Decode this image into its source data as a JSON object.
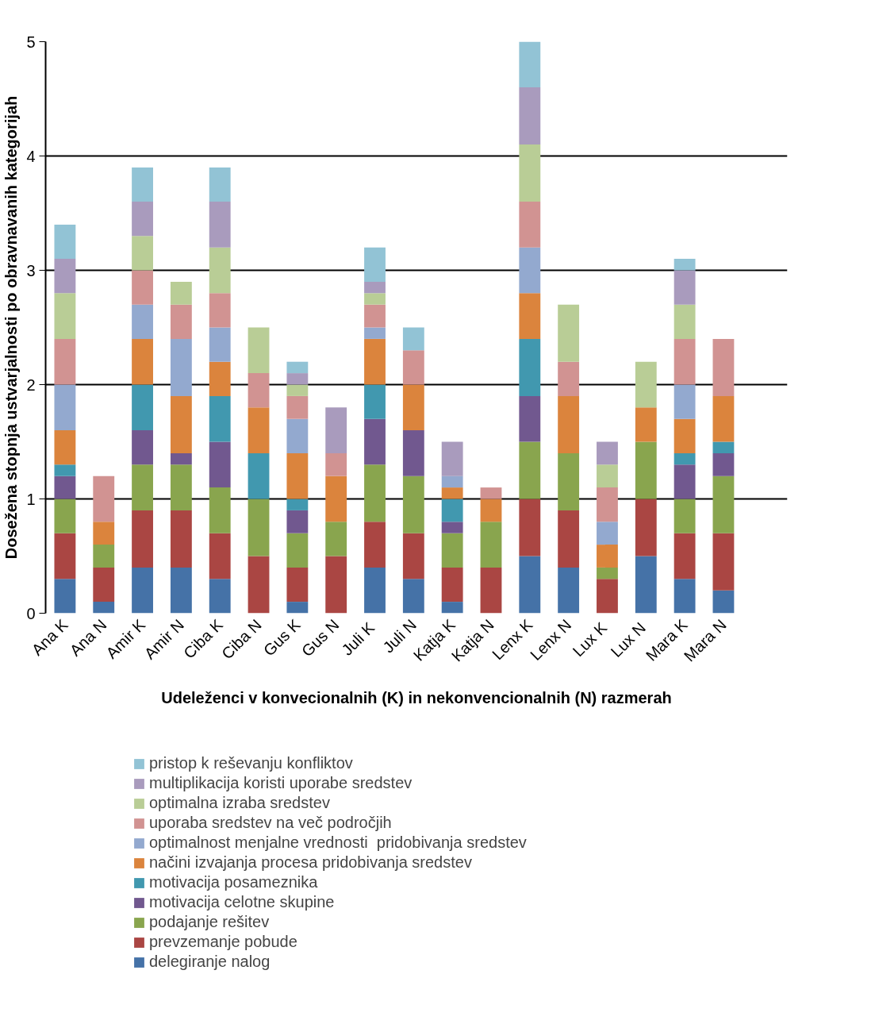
{
  "chart_data": {
    "type": "bar",
    "stacked": true,
    "xlabel": "Udeleženci v konvecionalnih (K) in nekonvencionalnih (N) razmerah",
    "ylabel": "Dosežena stopnja ustvarjalnosti po obravnavanih kategorijah",
    "categories": [
      "Ana K",
      "Ana N",
      "Amir K",
      "Amir N",
      "Ciba K",
      "Ciba N",
      "Gus K",
      "Gus N",
      "Juli  K",
      "Juli N",
      "Katja K",
      "Katja N",
      "Lenx K",
      "Lenx N",
      "Lux  K",
      "Lux  N",
      "Mara K",
      "Mara N"
    ],
    "ylim": [
      0,
      5
    ],
    "yticks": [
      0,
      1,
      2,
      3,
      4,
      5
    ],
    "grid": "y",
    "legend": "bottom",
    "series": [
      {
        "name": "delegiranje nalog",
        "color": "#4572a7",
        "values": [
          0.3,
          0.1,
          0.4,
          0.4,
          0.3,
          0,
          0.1,
          0,
          0.4,
          0.3,
          0.1,
          0,
          0.5,
          0.4,
          0,
          0.5,
          0.3,
          0.2
        ]
      },
      {
        "name": "prevzemanje pobude",
        "color": "#aa4643",
        "values": [
          0.4,
          0.3,
          0.5,
          0.5,
          0.4,
          0.5,
          0.3,
          0.5,
          0.4,
          0.4,
          0.3,
          0.4,
          0.5,
          0.5,
          0.3,
          0.5,
          0.4,
          0.5
        ]
      },
      {
        "name": "podajanje rešitev",
        "color": "#89a54e",
        "values": [
          0.3,
          0.2,
          0.4,
          0.4,
          0.4,
          0.5,
          0.3,
          0.3,
          0.5,
          0.5,
          0.3,
          0.4,
          0.5,
          0.5,
          0.1,
          0.5,
          0.3,
          0.5
        ]
      },
      {
        "name": "motivacija celotne skupine",
        "color": "#71588f",
        "values": [
          0.2,
          0,
          0.3,
          0.1,
          0.4,
          0,
          0.2,
          0,
          0.4,
          0.4,
          0.1,
          0,
          0.4,
          0,
          0,
          0,
          0.3,
          0.2
        ]
      },
      {
        "name": "motivacija posameznika",
        "color": "#4198af",
        "values": [
          0.1,
          0,
          0.4,
          0,
          0.4,
          0.4,
          0.1,
          0,
          0.3,
          0,
          0.2,
          0,
          0.5,
          0,
          0,
          0,
          0.1,
          0.1
        ]
      },
      {
        "name": "načini izvajanja procesa pridobivanja sredstev",
        "color": "#db843d",
        "values": [
          0.3,
          0.2,
          0.4,
          0.5,
          0.3,
          0.4,
          0.4,
          0.4,
          0.4,
          0.4,
          0.1,
          0.2,
          0.4,
          0.5,
          0.2,
          0.3,
          0.3,
          0.4
        ]
      },
      {
        "name": "optimalnost menjalne vrednosti  pridobivanja sredstev",
        "color": "#93a9cf",
        "values": [
          0.4,
          0,
          0.3,
          0.5,
          0.3,
          0,
          0.3,
          0,
          0.1,
          0,
          0.1,
          0,
          0.4,
          0,
          0.2,
          0,
          0.3,
          0
        ]
      },
      {
        "name": "uporaba sredstev na več področjih",
        "color": "#d19392",
        "values": [
          0.4,
          0.4,
          0.3,
          0.3,
          0.3,
          0.3,
          0.2,
          0.2,
          0.2,
          0.3,
          0,
          0.1,
          0.4,
          0.3,
          0.3,
          0,
          0.4,
          0.5
        ]
      },
      {
        "name": "optimalna izraba sredstev",
        "color": "#b9cd96",
        "values": [
          0.4,
          0,
          0.3,
          0.2,
          0.4,
          0.4,
          0.1,
          0,
          0.1,
          0,
          0,
          0,
          0.5,
          0.5,
          0.2,
          0.4,
          0.3,
          0
        ]
      },
      {
        "name": "multiplikacija koristi uporabe sredstev",
        "color": "#a99bbd",
        "values": [
          0.3,
          0,
          0.3,
          0,
          0.4,
          0,
          0.1,
          0.4,
          0.1,
          0,
          0.3,
          0,
          0.5,
          0,
          0.2,
          0,
          0.3,
          0
        ]
      },
      {
        "name": "pristop k reševanju konfliktov",
        "color": "#92c3d5",
        "values": [
          0.3,
          0,
          0.3,
          0,
          0.3,
          0,
          0.1,
          0,
          0.3,
          0.2,
          0,
          0,
          0.4,
          0,
          0,
          0,
          0.1,
          0
        ]
      }
    ]
  }
}
